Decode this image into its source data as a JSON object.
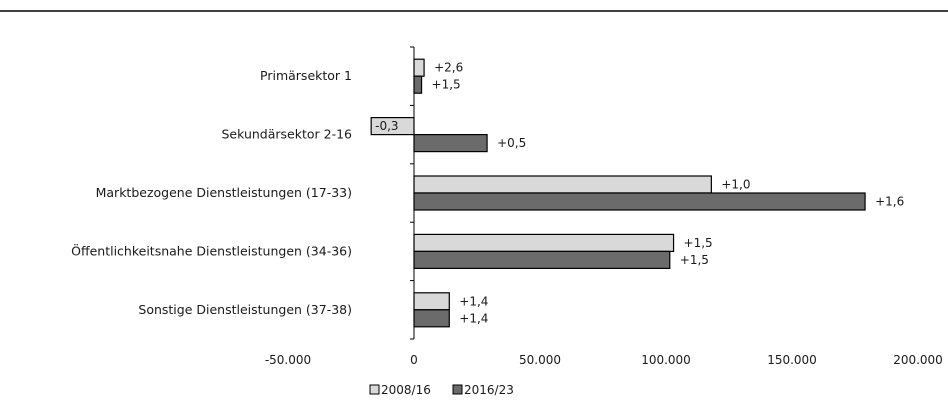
{
  "chart_data": {
    "type": "bar",
    "orientation": "horizontal",
    "categories": [
      "Primärsektor 1",
      "Sekundärsektor 2-16",
      "Marktbezogene Dienstleistungen (17-33)",
      "Öffentlichkeitsnahe Dienstleistungen (34-36)",
      "Sonstige Dienstleistungen (37-38)"
    ],
    "series": [
      {
        "name": "2008/16",
        "color": "#d9d9d9",
        "values": [
          4000,
          -17000,
          118000,
          103000,
          14000
        ],
        "labels": [
          "+2,6",
          "-0,3",
          "+1,0",
          "+1,5",
          "+1,4"
        ]
      },
      {
        "name": "2016/23",
        "color": "#6b6b6b",
        "values": [
          3000,
          29000,
          179000,
          101500,
          14000
        ],
        "labels": [
          "+1,5",
          "+0,5",
          "+1,6",
          "+1,5",
          "+1,4"
        ]
      }
    ],
    "x_ticks": [
      "-50.000",
      "0",
      "50.000",
      "100.000",
      "150.000",
      "200.000"
    ],
    "x_tick_values": [
      -50000,
      0,
      50000,
      100000,
      150000,
      200000
    ],
    "xlim": [
      -50000,
      200000
    ],
    "legend_position": "bottom-center",
    "grid": false,
    "title": "",
    "xlabel": "",
    "ylabel": ""
  }
}
